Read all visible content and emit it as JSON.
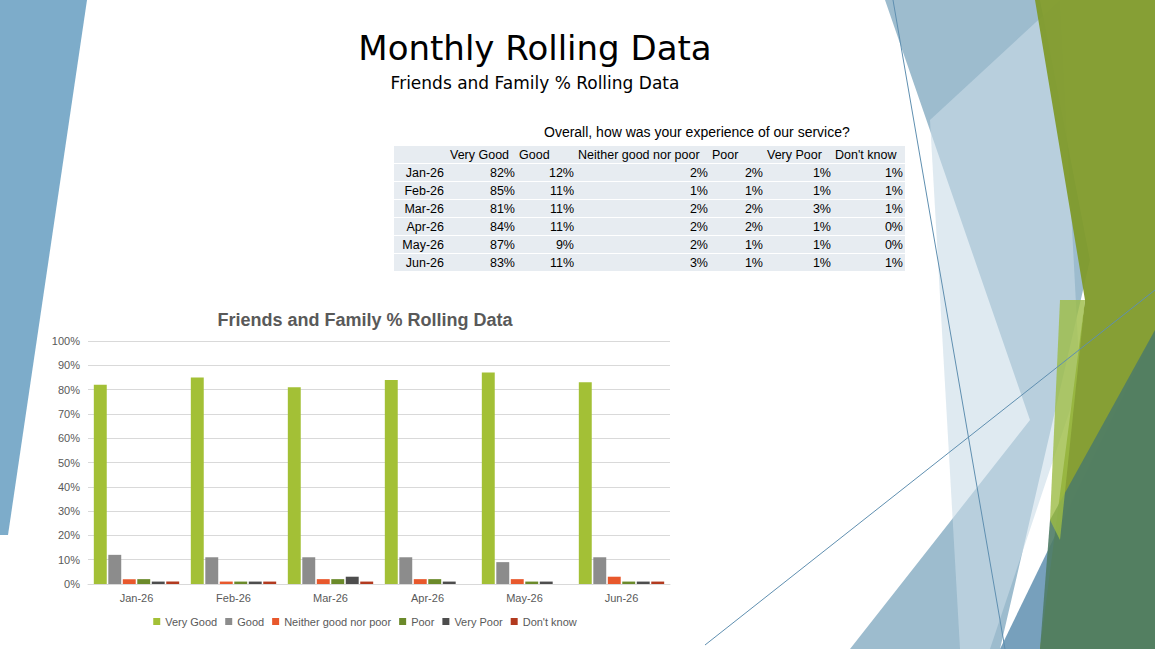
{
  "title": "Monthly Rolling Data",
  "subtitle": "Friends and Family % Rolling Data",
  "table": {
    "caption": "Overall, how was your experience of our service?",
    "header": [
      "Very Good",
      "Good",
      "Neither good nor poor",
      "Poor",
      "Very Poor",
      "Don't know"
    ],
    "rows": [
      [
        "Jan-26",
        "82%",
        "12%",
        "2%",
        "2%",
        "1%",
        "1%"
      ],
      [
        "Feb-26",
        "85%",
        "11%",
        "1%",
        "1%",
        "1%",
        "1%"
      ],
      [
        "Mar-26",
        "81%",
        "11%",
        "2%",
        "2%",
        "3%",
        "1%"
      ],
      [
        "Apr-26",
        "84%",
        "11%",
        "2%",
        "2%",
        "1%",
        "0%"
      ],
      [
        "May-26",
        "87%",
        "9%",
        "2%",
        "1%",
        "1%",
        "0%"
      ],
      [
        "Jun-26",
        "83%",
        "11%",
        "3%",
        "1%",
        "1%",
        "1%"
      ]
    ]
  },
  "chart_data": {
    "type": "bar",
    "title": "Friends and Family % Rolling Data",
    "categories": [
      "Jan-26",
      "Feb-26",
      "Mar-26",
      "Apr-26",
      "May-26",
      "Jun-26"
    ],
    "series": [
      {
        "name": "Very Good",
        "color": "#a3c036",
        "values": [
          82,
          85,
          81,
          84,
          87,
          83
        ]
      },
      {
        "name": "Good",
        "color": "#8c8c8c",
        "values": [
          12,
          11,
          11,
          11,
          9,
          11
        ]
      },
      {
        "name": "Neither good nor poor",
        "color": "#e8582c",
        "values": [
          2,
          1,
          2,
          2,
          2,
          3
        ]
      },
      {
        "name": "Poor",
        "color": "#6b8a2a",
        "values": [
          2,
          1,
          2,
          2,
          1,
          1
        ]
      },
      {
        "name": "Very Poor",
        "color": "#4d4d4d",
        "values": [
          1,
          1,
          3,
          1,
          1,
          1
        ]
      },
      {
        "name": "Don't know",
        "color": "#b23a1f",
        "values": [
          1,
          1,
          1,
          0,
          0,
          1
        ]
      }
    ],
    "ylim": [
      0,
      100
    ],
    "yticks": [
      {
        "value": 0,
        "label": "0%"
      },
      {
        "value": 10,
        "label": "10%"
      },
      {
        "value": 20,
        "label": "20%"
      },
      {
        "value": 30,
        "label": "30%"
      },
      {
        "value": 40,
        "label": "40%"
      },
      {
        "value": 50,
        "label": "50%"
      },
      {
        "value": 60,
        "label": "60%"
      },
      {
        "value": 70,
        "label": "70%"
      },
      {
        "value": 80,
        "label": "80%"
      },
      {
        "value": 90,
        "label": "90%"
      },
      {
        "value": 100,
        "label": "100%"
      }
    ],
    "grid": true,
    "legend": "bottom"
  }
}
